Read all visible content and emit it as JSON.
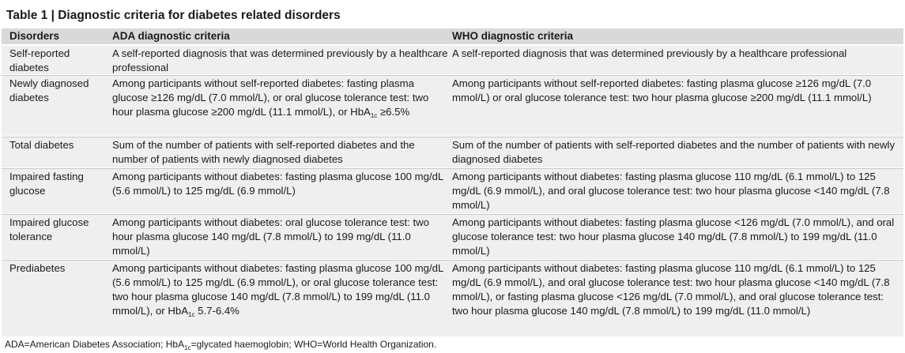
{
  "title": "Table 1 | Diagnostic criteria for diabetes related disorders",
  "headers": {
    "disorders": "Disorders",
    "ada": "ADA diagnostic criteria",
    "who": "WHO diagnostic criteria"
  },
  "rows": [
    {
      "disorder": "Self-reported diabetes",
      "ada": "A self-reported diagnosis that was determined previously by a healthcare professional",
      "who": "A self-reported diagnosis that was determined previously by a healthcare professional"
    },
    {
      "disorder": "Newly diagnosed diabetes",
      "ada_pre": "Among participants without self-reported diabetes: fasting plasma glucose ≥126 mg/dL (7.0 mmol/L), or oral glucose tolerance test: two hour plasma glucose ≥200 mg/dL (11.1 mmol/L), or HbA",
      "ada_sub": "1c",
      "ada_post": " ≥6.5%",
      "who": "Among participants without self-reported diabetes: fasting plasma glucose ≥126 mg/dL (7.0 mmol/L) or oral glucose tolerance test: two hour plasma glucose ≥200 mg/dL (11.1 mmol/L)"
    },
    {
      "disorder": "Total diabetes",
      "ada": "Sum of the number of patients with self-reported diabetes and the number of patients with newly diagnosed diabetes",
      "who": "Sum of the number of patients with self-reported diabetes and the number of patients with newly diagnosed diabetes"
    },
    {
      "disorder": "Impaired fasting glucose",
      "ada": "Among participants without diabetes: fasting plasma glucose 100 mg/dL (5.6 mmol/L) to 125 mg/dL (6.9 mmol/L)",
      "who": "Among participants without diabetes: fasting plasma glucose 110 mg/dL (6.1 mmol/L) to 125 mg/dL (6.9 mmol/L), and oral glucose tolerance test: two hour plasma glucose <140 mg/dL (7.8 mmol/L)"
    },
    {
      "disorder": "Impaired glucose tolerance",
      "ada": "Among participants without diabetes: oral glucose tolerance test: two hour plasma glucose 140 mg/dL (7.8 mmol/L) to 199 mg/dL (11.0 mmol/L)",
      "who": "Among participants without diabetes: fasting plasma glucose <126 mg/dL (7.0 mmol/L), and oral glucose tolerance test: two hour plasma glucose 140 mg/dL (7.8 mmol/L) to 199 mg/dL (11.0 mmol/L)"
    },
    {
      "disorder": "Prediabetes",
      "ada_pre": "Among participants without diabetes: fasting plasma glucose 100 mg/dL (5.6 mmol/L) to 125 mg/dL (6.9 mmol/L), or oral glucose tolerance test: two hour plasma glucose 140 mg/dL (7.8 mmol/L) to 199 mg/dL (11.0 mmol/L), or HbA",
      "ada_sub": "1c",
      "ada_post": " 5.7-6.4%",
      "who": "Among participants without diabetes: fasting plasma glucose 110 mg/dL (6.1 mmol/L) to 125 mg/dL (6.9 mmol/L), and oral glucose tolerance test: two hour plasma glucose <140 mg/dL (7.8 mmol/L), or fasting plasma glucose <126 mg/dL (7.0 mmol/L), and oral glucose tolerance test: two hour plasma glucose 140 mg/dL (7.8 mmol/L) to 199 mg/dL (11.0 mmol/L)"
    }
  ],
  "footnote": {
    "pre": "ADA=American Diabetes Association; HbA",
    "sub": "1c",
    "post": "=glycated haemoglobin; WHO=World Health Organization."
  }
}
